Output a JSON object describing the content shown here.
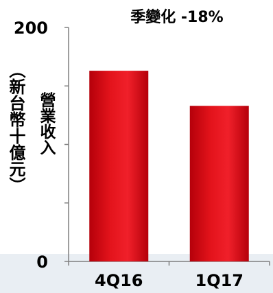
{
  "chart_data": {
    "type": "bar",
    "title": "季變化 -18%",
    "categories": [
      "4Q16",
      "1Q17"
    ],
    "values": [
      163,
      133
    ],
    "ylabel": "營業收入",
    "ylabel_unit": "（新台幣十億元）",
    "ylim": [
      0,
      200
    ],
    "y_tick_labels": [
      "0",
      "200"
    ],
    "grid": false,
    "legend": "none",
    "bar_color": "#e3131b",
    "bar_dark": "#b5000a"
  }
}
